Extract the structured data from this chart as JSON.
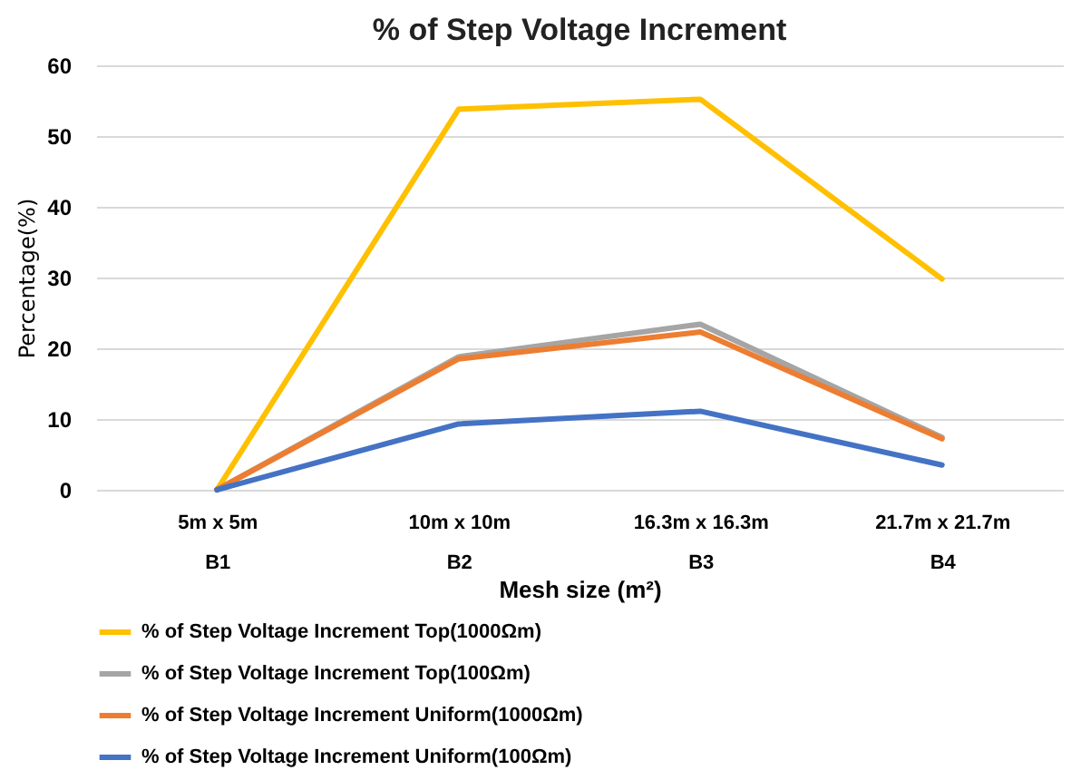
{
  "chart_data": {
    "type": "line",
    "title": "% of Step Voltage Increment",
    "xlabel": "Mesh size (m²)",
    "ylabel": "Percentage(%)",
    "categories": [
      "5m x 5m\nB1",
      "10m x 10m\nB2",
      "16.3m x 16.3m\nB3",
      "21.7m x 21.7m\nB4"
    ],
    "series": [
      {
        "name": "% of Step Voltage Increment Top(1000Ωm)",
        "color": "#ffc000",
        "values": [
          0,
          53.8,
          55.2,
          29.8
        ]
      },
      {
        "name": "% of Step Voltage Increment Top(100Ωm)",
        "color": "#a5a5a5",
        "values": [
          0,
          18.8,
          23.4,
          7.4
        ]
      },
      {
        "name": "% of Step Voltage Increment Uniform(1000Ωm)",
        "color": "#ed7d31",
        "values": [
          0,
          18.5,
          22.3,
          7.2
        ]
      },
      {
        "name": "% of Step Voltage Increment Uniform(100Ωm)",
        "color": "#4472c4",
        "values": [
          0,
          9.3,
          11.1,
          3.5
        ]
      }
    ],
    "ylim": [
      0,
      60
    ],
    "yticks": [
      0,
      10,
      20,
      30,
      40,
      50,
      60
    ],
    "grid": "y",
    "legend": "bottom",
    "marker": "none",
    "line_style": "solid"
  }
}
